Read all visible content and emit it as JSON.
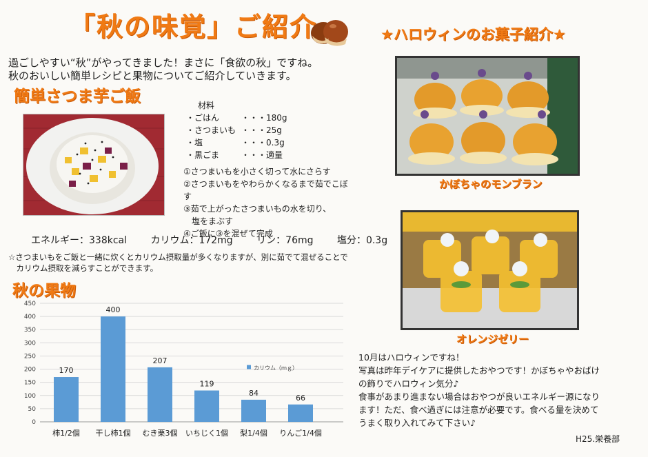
{
  "title": "「秋の味覚」ご紹介",
  "intro": [
    "過ごしやすい“秋”がやってきました！まさに「食欲の秋」ですね。",
    "秋のおいしい簡単レシピと果物についてご紹介していきます。"
  ],
  "recipe": {
    "heading": "簡単さつま芋ご飯",
    "ingredients_title": "材料",
    "ingredients": [
      {
        "name": "・ごはん",
        "amount": "・・・180g"
      },
      {
        "name": "・さつまいも",
        "amount": "・・・25g"
      },
      {
        "name": "・塩",
        "amount": "・・・0.3g"
      },
      {
        "name": "・黒ごま",
        "amount": "・・・適量"
      }
    ],
    "steps": [
      "①さつまいもを小さく切って水にさらす",
      "②さつまいもをやわらかくなるまで茹でこぼす",
      "③茹で上がったさつまいもの水を切り、",
      "　塩をまぶす",
      "④ご飯に③を混ぜて完成"
    ],
    "nutrition": [
      "エネルギー：338kcal",
      "カリウム：172mg",
      "リン：76mg",
      "塩分：0.3g"
    ],
    "note": [
      "☆さつまいもをご飯と一緒に炊くとカリウム摂取量が多くなりますが、別に茹でて混ぜることで",
      "　カリウム摂取を減らすことができます。"
    ]
  },
  "fruit_heading": "秋の果物",
  "chart_data": {
    "type": "bar",
    "categories": [
      "柿1/2個",
      "干し柿1個",
      "むき栗3個",
      "いちじく1個",
      "梨1/4個",
      "りんご1/4個"
    ],
    "series": [
      {
        "name": "カリウム（ｍｇ）",
        "values": [
          170,
          400,
          207,
          119,
          84,
          66
        ]
      }
    ],
    "ylim": [
      0,
      450
    ],
    "yticks": [
      0,
      50,
      100,
      150,
      200,
      250,
      300,
      350,
      400,
      450
    ],
    "legend": "right",
    "bar_color": "#5b9bd5"
  },
  "halloween": {
    "heading": "★ハロウィンのお菓子紹介★",
    "caption1": "かぼちゃのモンブラン",
    "caption2": "オレンジゼリー",
    "text": [
      "10月はハロウィンですね！",
      "写真は昨年デイケアに提供したおやつです！かぼちゃやおばけ",
      "の飾りでハロウィン気分♪",
      "食事があまり進まない場合はおやつが良いエネルギー源になり",
      "ます！ただ、食べ過ぎには注意が必要です。食べる量を決めて",
      "うまく取り入れてみて下さい♪"
    ],
    "signature": "H25.栄養部"
  },
  "colors": {
    "accent": "#f07a14",
    "bar": "#5b9bd5"
  }
}
